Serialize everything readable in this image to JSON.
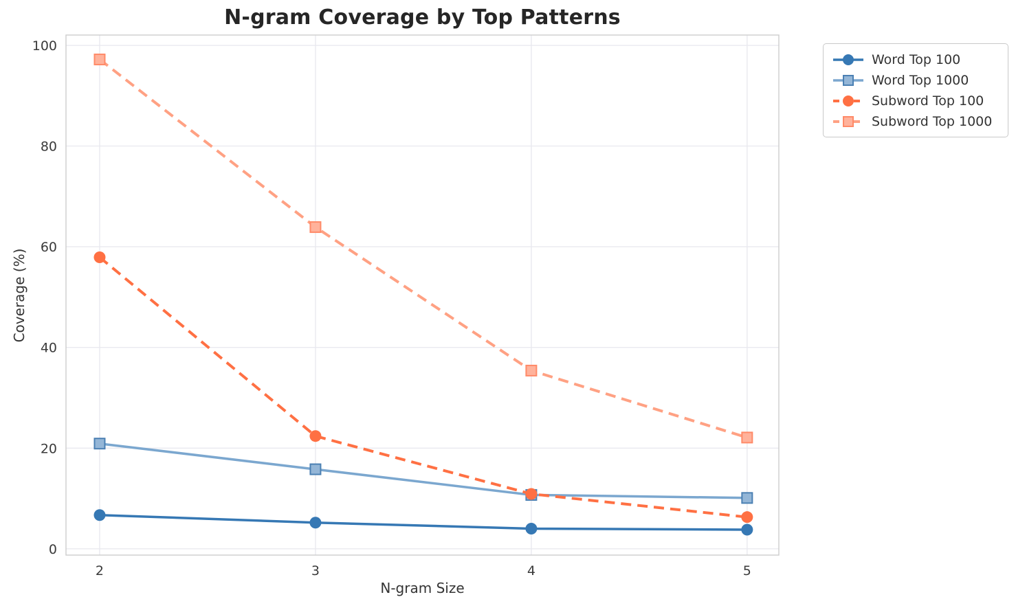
{
  "chart_data": {
    "type": "line",
    "title": "N-gram Coverage by Top Patterns",
    "xlabel": "N-gram Size",
    "ylabel": "Coverage (%)",
    "x": [
      2,
      3,
      4,
      5
    ],
    "x_ticks": [
      "2",
      "3",
      "4",
      "5"
    ],
    "y_ticks": [
      0,
      20,
      40,
      60,
      80,
      100
    ],
    "xlim": [
      1.844,
      5.147
    ],
    "ylim": [
      -1.25,
      102.05
    ],
    "grid": true,
    "legend_position": "outside-upper-right",
    "series": [
      {
        "name": "Word Top 100",
        "values": [
          6.7,
          5.2,
          4.0,
          3.8
        ],
        "color": "#3678b4",
        "line_style": "solid",
        "marker": "circle",
        "marker_fill": "#3678b4",
        "marker_edge": "#3678b4"
      },
      {
        "name": "Word Top 1000",
        "values": [
          20.9,
          15.8,
          10.7,
          10.1
        ],
        "color": "#7ba7cf",
        "line_style": "solid",
        "marker": "square",
        "marker_fill": "#94b6d7",
        "marker_edge": "#4b80b3"
      },
      {
        "name": "Subword Top 100",
        "values": [
          57.9,
          22.4,
          10.9,
          6.3
        ],
        "color": "#ff7043",
        "line_style": "dashed",
        "marker": "circle",
        "marker_fill": "#ff7043",
        "marker_edge": "#ff7043"
      },
      {
        "name": "Subword Top 1000",
        "values": [
          97.2,
          63.9,
          35.4,
          22.1
        ],
        "color": "#ffa183",
        "line_style": "dashed",
        "marker": "square",
        "marker_fill": "#ffb29b",
        "marker_edge": "#ff8a68"
      }
    ]
  }
}
